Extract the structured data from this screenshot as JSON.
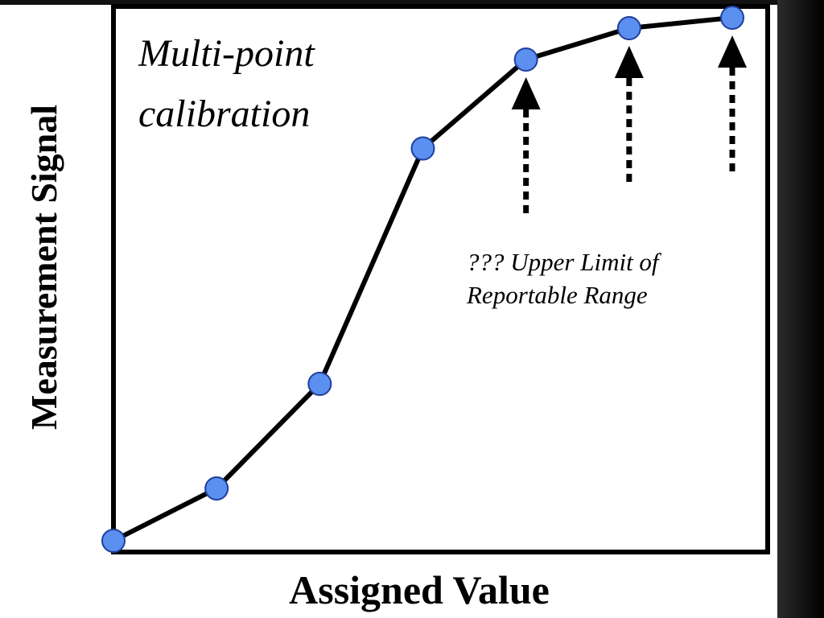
{
  "chart_data": {
    "type": "line",
    "title": "Multi-point calibration",
    "title_lines": [
      "Multi-point",
      "calibration"
    ],
    "xlabel": "Assigned Value",
    "ylabel": "Measurement Signal",
    "grid": false,
    "x": [
      0,
      1,
      2,
      3,
      4,
      5,
      6
    ],
    "y": [
      0,
      1,
      3,
      7.5,
      9.2,
      9.8,
      10
    ],
    "xlim": [
      0,
      6
    ],
    "ylim": [
      0,
      10
    ],
    "series_color": "#5b8ff0",
    "line_color": "#000000",
    "annotation": {
      "lines": [
        "??? Upper Limit of",
        "Reportable Range"
      ],
      "arrow_point_indices": [
        4,
        5,
        6
      ]
    }
  }
}
